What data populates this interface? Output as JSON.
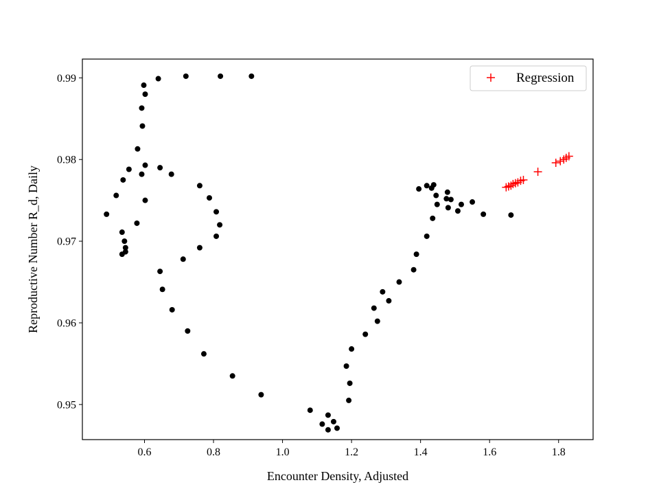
{
  "chart_data": {
    "type": "scatter",
    "title": "",
    "xlabel": "Encounter Density, Adjusted",
    "ylabel": "Reproductive Number R_d, Daily",
    "xlim": [
      0.42,
      1.9
    ],
    "ylim": [
      0.9457,
      0.9923
    ],
    "xticks": [
      0.6,
      0.8,
      1.0,
      1.2,
      1.4,
      1.6,
      1.8
    ],
    "xtick_labels": [
      "0.6",
      "0.8",
      "1.0",
      "1.2",
      "1.4",
      "1.6",
      "1.8"
    ],
    "yticks": [
      0.95,
      0.96,
      0.97,
      0.98,
      0.99
    ],
    "ytick_labels": [
      "0.95",
      "0.96",
      "0.97",
      "0.98",
      "0.99"
    ],
    "grid": false,
    "legend": {
      "position": "top-right",
      "entries": [
        "Regression"
      ]
    },
    "series": [
      {
        "marker": "dot",
        "color": "#000000",
        "points": [
          [
            0.64,
            0.9899
          ],
          [
            0.72,
            0.9902
          ],
          [
            0.82,
            0.9902
          ],
          [
            0.91,
            0.9902
          ],
          [
            0.598,
            0.9891
          ],
          [
            0.602,
            0.988
          ],
          [
            0.592,
            0.9863
          ],
          [
            0.594,
            0.9841
          ],
          [
            0.58,
            0.9813
          ],
          [
            0.602,
            0.9793
          ],
          [
            0.555,
            0.9788
          ],
          [
            0.592,
            0.9782
          ],
          [
            0.645,
            0.979
          ],
          [
            0.678,
            0.9782
          ],
          [
            0.538,
            0.9775
          ],
          [
            0.518,
            0.9756
          ],
          [
            0.602,
            0.975
          ],
          [
            0.49,
            0.9733
          ],
          [
            0.578,
            0.9722
          ],
          [
            0.535,
            0.9711
          ],
          [
            0.542,
            0.97
          ],
          [
            0.545,
            0.9692
          ],
          [
            0.545,
            0.9687
          ],
          [
            0.535,
            0.9684
          ],
          [
            0.76,
            0.9768
          ],
          [
            0.788,
            0.9753
          ],
          [
            0.808,
            0.9736
          ],
          [
            0.818,
            0.972
          ],
          [
            0.808,
            0.9706
          ],
          [
            0.76,
            0.9692
          ],
          [
            0.712,
            0.9678
          ],
          [
            0.645,
            0.9663
          ],
          [
            0.652,
            0.9641
          ],
          [
            0.68,
            0.9616
          ],
          [
            0.725,
            0.959
          ],
          [
            0.772,
            0.9562
          ],
          [
            0.855,
            0.9535
          ],
          [
            0.938,
            0.9512
          ],
          [
            1.08,
            0.9493
          ],
          [
            1.132,
            0.9487
          ],
          [
            1.115,
            0.9476
          ],
          [
            1.148,
            0.9479
          ],
          [
            1.132,
            0.9469
          ],
          [
            1.158,
            0.9471
          ],
          [
            1.192,
            0.9505
          ],
          [
            1.195,
            0.9526
          ],
          [
            1.185,
            0.9547
          ],
          [
            1.2,
            0.9568
          ],
          [
            1.24,
            0.9586
          ],
          [
            1.275,
            0.9602
          ],
          [
            1.265,
            0.9618
          ],
          [
            1.308,
            0.9627
          ],
          [
            1.29,
            0.9638
          ],
          [
            1.338,
            0.965
          ],
          [
            1.38,
            0.9665
          ],
          [
            1.388,
            0.9684
          ],
          [
            1.418,
            0.9706
          ],
          [
            1.435,
            0.9728
          ],
          [
            1.395,
            0.9764
          ],
          [
            1.418,
            0.9768
          ],
          [
            1.432,
            0.9765
          ],
          [
            1.438,
            0.9769
          ],
          [
            1.445,
            0.9756
          ],
          [
            1.448,
            0.9745
          ],
          [
            1.478,
            0.976
          ],
          [
            1.475,
            0.9752
          ],
          [
            1.488,
            0.9751
          ],
          [
            1.48,
            0.9741
          ],
          [
            1.508,
            0.9737
          ],
          [
            1.518,
            0.9745
          ],
          [
            1.55,
            0.9748
          ],
          [
            1.582,
            0.9733
          ],
          [
            1.662,
            0.9732
          ]
        ]
      },
      {
        "name": "Regression",
        "marker": "plus",
        "color": "#ff0000",
        "points": [
          [
            1.648,
            0.9766
          ],
          [
            1.655,
            0.9767
          ],
          [
            1.662,
            0.9768
          ],
          [
            1.668,
            0.977
          ],
          [
            1.675,
            0.9771
          ],
          [
            1.682,
            0.9772
          ],
          [
            1.69,
            0.9774
          ],
          [
            1.698,
            0.9775
          ],
          [
            1.74,
            0.9785
          ],
          [
            1.792,
            0.9796
          ],
          [
            1.805,
            0.9798
          ],
          [
            1.815,
            0.98
          ],
          [
            1.822,
            0.9802
          ],
          [
            1.83,
            0.9804
          ]
        ]
      }
    ]
  }
}
